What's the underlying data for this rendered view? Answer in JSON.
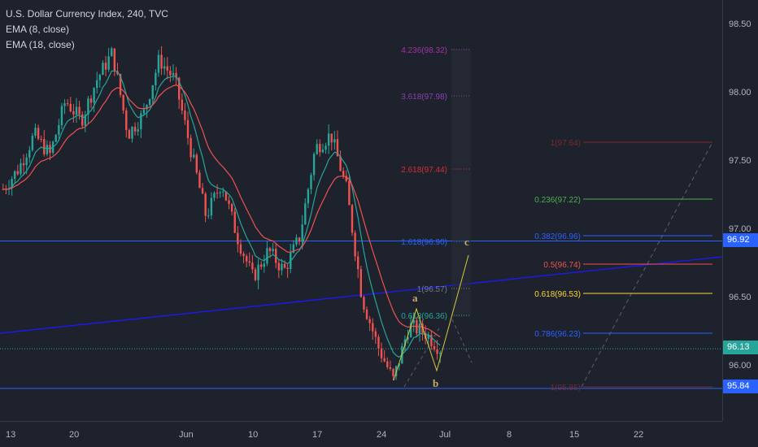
{
  "header": {
    "title": "U.S. Dollar Currency Index, 240, TVC",
    "indicators": [
      "EMA (8, close)",
      "EMA (18, close)"
    ]
  },
  "colors": {
    "background": "#1e222d",
    "up_candle": "#26a69a",
    "down_candle": "#ef5350",
    "ema_fast": "#26a69a",
    "ema_slow": "#ef5350",
    "horizontal_line": "#2962ff",
    "trend_line": "#1a1aff",
    "current_price_line": "#26a69a",
    "wave_label": "#c9a96e",
    "wave_line": "#d4c93a"
  },
  "price_axis": {
    "ticks": [
      "98.50",
      "98.00",
      "97.50",
      "97.00",
      "96.50",
      "96.00"
    ],
    "markers": [
      {
        "label": "96.92",
        "value": 96.92,
        "color": "#2962ff"
      },
      {
        "label": "96.13",
        "value": 96.13,
        "color": "#26a69a"
      },
      {
        "label": "95.84",
        "value": 95.84,
        "color": "#2962ff"
      }
    ]
  },
  "time_axis": {
    "ticks": [
      "13",
      "20",
      "Jun",
      "10",
      "17",
      "24",
      "Jul",
      "8",
      "15",
      "22"
    ]
  },
  "fib_extension": {
    "labels": [
      "4.236(98.32)",
      "3.618(97.98)",
      "2.618(97.44)",
      "1.618(96.90)",
      "1(96.57)",
      "0.618(96.36)"
    ],
    "colors": [
      "#a033a0",
      "#8b3fb0",
      "#d32f2f",
      "#2962ff",
      "#787b86",
      "#26a69a"
    ]
  },
  "fib_retracement": {
    "labels": [
      "1(97.64)",
      "0.236(97.22)",
      "0.382(96.96)",
      "0.5(96.74)",
      "0.618(96.53)",
      "0.786(96.23)",
      "1(95.85)"
    ],
    "colors": [
      "#7a2a2a",
      "#4caf50",
      "#2962ff",
      "#ef5350",
      "#fdd835",
      "#2962ff",
      "#7a2a2a"
    ]
  },
  "waves": [
    "a",
    "b",
    "c"
  ],
  "chart_data": {
    "type": "candlestick",
    "title": "U.S. Dollar Currency Index, 240, TVC",
    "x_ticks": [
      "13",
      "20",
      "Jun",
      "10",
      "17",
      "24",
      "Jul",
      "8",
      "15",
      "22"
    ],
    "ylim": [
      95.6,
      98.6
    ],
    "y_ticks": [
      96.0,
      96.5,
      97.0,
      97.5,
      98.0,
      98.5
    ],
    "series": [
      {
        "name": "EMA (8, close)"
      },
      {
        "name": "EMA (18, close)"
      }
    ],
    "close_path": [
      {
        "x": 0,
        "y": 97.3
      },
      {
        "x": 1,
        "y": 97.45
      },
      {
        "x": 2,
        "y": 97.7
      },
      {
        "x": 3,
        "y": 97.55
      },
      {
        "x": 4,
        "y": 97.95
      },
      {
        "x": 5,
        "y": 97.8
      },
      {
        "x": 6,
        "y": 98.1
      },
      {
        "x": 7,
        "y": 98.3
      },
      {
        "x": 8,
        "y": 97.7
      },
      {
        "x": 9,
        "y": 97.85
      },
      {
        "x": 10,
        "y": 98.25
      },
      {
        "x": 11,
        "y": 98.1
      },
      {
        "x": 12,
        "y": 97.6
      },
      {
        "x": 13,
        "y": 97.1
      },
      {
        "x": 14,
        "y": 97.35
      },
      {
        "x": 15,
        "y": 96.95
      },
      {
        "x": 16,
        "y": 96.65
      },
      {
        "x": 17,
        "y": 96.85
      },
      {
        "x": 18,
        "y": 96.7
      },
      {
        "x": 19,
        "y": 96.95
      },
      {
        "x": 20,
        "y": 97.6
      },
      {
        "x": 21,
        "y": 97.7
      },
      {
        "x": 22,
        "y": 97.3
      },
      {
        "x": 23,
        "y": 96.5
      },
      {
        "x": 24,
        "y": 96.15
      },
      {
        "x": 25,
        "y": 95.9
      },
      {
        "x": 26,
        "y": 96.3
      },
      {
        "x": 27,
        "y": 96.25
      },
      {
        "x": 28,
        "y": 96.13
      }
    ],
    "horizontal_levels": [
      96.92,
      96.13,
      95.84
    ]
  }
}
